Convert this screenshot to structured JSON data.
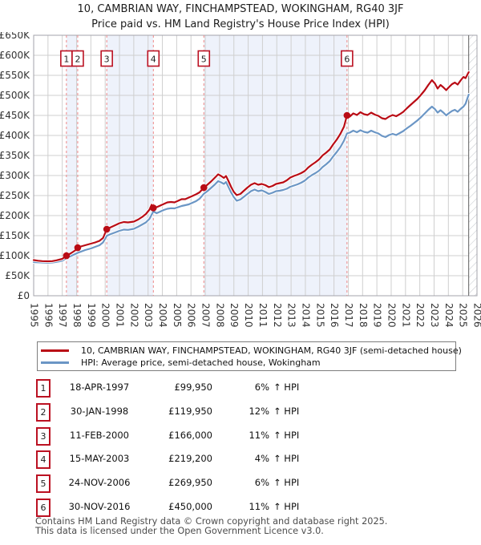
{
  "title": {
    "line1": "10, CAMBRIAN WAY, FINCHAMPSTEAD, WOKINGHAM, RG40 3JF",
    "line2": "Price paid vs. HM Land Registry's House Price Index (HPI)"
  },
  "legend": {
    "items": [
      {
        "label": "10, CAMBRIAN WAY, FINCHAMPSTEAD, WOKINGHAM, RG40 3JF (semi-detached house)",
        "color": "#b90c15"
      },
      {
        "label": "HPI: Average price, semi-detached house, Wokingham",
        "color": "#6b96c5"
      }
    ]
  },
  "table": {
    "hpi_suffix": "↑ HPI"
  },
  "footer": {
    "line1": "Contains HM Land Registry data © Crown copyright and database right 2025.",
    "line2": "This data is licensed under the Open Government Licence v3.0."
  },
  "chart_data": {
    "type": "line",
    "x_min": 1995,
    "x_max": 2026,
    "y_min": 0,
    "y_max": 650,
    "values_unit": "GBP thousands",
    "grid": true,
    "legend_position": "below",
    "y_tick_values": [
      0,
      50,
      100,
      150,
      200,
      250,
      300,
      350,
      400,
      450,
      500,
      550,
      600,
      650
    ],
    "y_tick_labels": [
      "£0",
      "£50K",
      "£100K",
      "£150K",
      "£200K",
      "£250K",
      "£300K",
      "£350K",
      "£400K",
      "£450K",
      "£500K",
      "£550K",
      "£600K",
      "£650K"
    ],
    "x_tick_labels": [
      "1995",
      "1996",
      "1997",
      "1998",
      "1999",
      "2000",
      "2001",
      "2002",
      "2003",
      "2004",
      "2005",
      "2006",
      "2007",
      "2008",
      "2009",
      "2010",
      "2011",
      "2012",
      "2013",
      "2014",
      "2015",
      "2016",
      "2017",
      "2018",
      "2019",
      "2020",
      "2021",
      "2022",
      "2023",
      "2024",
      "2025",
      "2026"
    ],
    "colors": {
      "price_line": "#b90c15",
      "hpi_line": "#6b96c5",
      "sale_dashed_line": "#ee8888",
      "ownership_band": "#eef2fb",
      "grid": "#cfcfcf",
      "frame": "#a3a3ab",
      "data_end_line": "#606060",
      "marker_box_border": "#bb1122"
    },
    "ownership_bands": [
      [
        1997.29,
        1998.08
      ],
      [
        2000.11,
        2003.37
      ],
      [
        2006.9,
        2016.91
      ]
    ],
    "data_end": 2025.42,
    "sales": [
      {
        "n": 1,
        "date": "18-APR-1997",
        "year": 1997.29,
        "price": 99950,
        "price_label": "£99,950",
        "vs_hpi": "6%"
      },
      {
        "n": 2,
        "date": "30-JAN-1998",
        "year": 1998.08,
        "price": 119950,
        "price_label": "£119,950",
        "vs_hpi": "12%"
      },
      {
        "n": 3,
        "date": "11-FEB-2000",
        "year": 2000.11,
        "price": 166000,
        "price_label": "£166,000",
        "vs_hpi": "11%"
      },
      {
        "n": 4,
        "date": "15-MAY-2003",
        "year": 2003.37,
        "price": 219200,
        "price_label": "£219,200",
        "vs_hpi": "4%"
      },
      {
        "n": 5,
        "date": "24-NOV-2006",
        "year": 2006.9,
        "price": 269950,
        "price_label": "£269,950",
        "vs_hpi": "6%"
      },
      {
        "n": 6,
        "date": "30-NOV-2016",
        "year": 2016.91,
        "price": 450000,
        "price_label": "£450,000",
        "vs_hpi": "11%"
      }
    ],
    "series": [
      {
        "name": "10, CAMBRIAN WAY, FINCHAMPSTEAD, WOKINGHAM, RG40 3JF (semi-detached house)",
        "color": "#b90c15",
        "points": [
          [
            1995.0,
            89
          ],
          [
            1995.3,
            87.5
          ],
          [
            1995.6,
            86.5
          ],
          [
            1996.0,
            86
          ],
          [
            1996.3,
            86.5
          ],
          [
            1996.6,
            88.5
          ],
          [
            1997.0,
            92
          ],
          [
            1997.29,
            100
          ],
          [
            1997.6,
            106
          ],
          [
            1997.9,
            113
          ],
          [
            1998.08,
            120
          ],
          [
            1998.3,
            123
          ],
          [
            1998.6,
            126
          ],
          [
            1999.0,
            130
          ],
          [
            1999.3,
            133
          ],
          [
            1999.6,
            137
          ],
          [
            1999.85,
            144
          ],
          [
            2000.11,
            166
          ],
          [
            2000.4,
            171
          ],
          [
            2000.7,
            176
          ],
          [
            2001.0,
            181
          ],
          [
            2001.3,
            184
          ],
          [
            2001.6,
            183
          ],
          [
            2002.0,
            185
          ],
          [
            2002.3,
            190
          ],
          [
            2002.6,
            197
          ],
          [
            2002.85,
            204
          ],
          [
            2003.1,
            215
          ],
          [
            2003.25,
            227
          ],
          [
            2003.37,
            219.2
          ],
          [
            2003.6,
            221
          ],
          [
            2003.85,
            225
          ],
          [
            2004.1,
            229
          ],
          [
            2004.35,
            233
          ],
          [
            2004.6,
            234
          ],
          [
            2004.85,
            233
          ],
          [
            2005.1,
            237
          ],
          [
            2005.35,
            241
          ],
          [
            2005.6,
            241
          ],
          [
            2005.85,
            245
          ],
          [
            2006.1,
            249
          ],
          [
            2006.35,
            253
          ],
          [
            2006.6,
            258
          ],
          [
            2006.9,
            270
          ],
          [
            2007.15,
            277
          ],
          [
            2007.4,
            285
          ],
          [
            2007.65,
            294
          ],
          [
            2007.9,
            303
          ],
          [
            2008.1,
            299
          ],
          [
            2008.3,
            294
          ],
          [
            2008.45,
            299
          ],
          [
            2008.6,
            288
          ],
          [
            2008.8,
            272
          ],
          [
            2009.0,
            259
          ],
          [
            2009.2,
            251
          ],
          [
            2009.45,
            254
          ],
          [
            2009.7,
            262
          ],
          [
            2009.95,
            270
          ],
          [
            2010.2,
            277
          ],
          [
            2010.45,
            281
          ],
          [
            2010.7,
            277
          ],
          [
            2010.95,
            279
          ],
          [
            2011.2,
            276
          ],
          [
            2011.45,
            271
          ],
          [
            2011.7,
            274
          ],
          [
            2011.95,
            279
          ],
          [
            2012.2,
            281
          ],
          [
            2012.45,
            283
          ],
          [
            2012.7,
            288
          ],
          [
            2012.95,
            295
          ],
          [
            2013.2,
            299
          ],
          [
            2013.45,
            302
          ],
          [
            2013.7,
            306
          ],
          [
            2013.95,
            311
          ],
          [
            2014.2,
            320
          ],
          [
            2014.45,
            327
          ],
          [
            2014.7,
            333
          ],
          [
            2014.95,
            340
          ],
          [
            2015.2,
            350
          ],
          [
            2015.45,
            357
          ],
          [
            2015.7,
            365
          ],
          [
            2015.95,
            378
          ],
          [
            2016.2,
            390
          ],
          [
            2016.45,
            404
          ],
          [
            2016.7,
            422
          ],
          [
            2016.91,
            450
          ],
          [
            2017.1,
            447
          ],
          [
            2017.35,
            455
          ],
          [
            2017.6,
            451
          ],
          [
            2017.85,
            458
          ],
          [
            2018.1,
            453
          ],
          [
            2018.35,
            451
          ],
          [
            2018.6,
            457
          ],
          [
            2018.85,
            452
          ],
          [
            2019.1,
            449
          ],
          [
            2019.35,
            443
          ],
          [
            2019.6,
            441
          ],
          [
            2019.85,
            447
          ],
          [
            2020.1,
            451
          ],
          [
            2020.35,
            448
          ],
          [
            2020.6,
            453
          ],
          [
            2020.85,
            459
          ],
          [
            2021.1,
            468
          ],
          [
            2021.35,
            476
          ],
          [
            2021.6,
            484
          ],
          [
            2021.85,
            492
          ],
          [
            2022.1,
            502
          ],
          [
            2022.35,
            513
          ],
          [
            2022.6,
            526
          ],
          [
            2022.85,
            538
          ],
          [
            2023.05,
            530
          ],
          [
            2023.25,
            517
          ],
          [
            2023.45,
            526
          ],
          [
            2023.65,
            520
          ],
          [
            2023.85,
            513
          ],
          [
            2024.05,
            521
          ],
          [
            2024.25,
            528
          ],
          [
            2024.45,
            532
          ],
          [
            2024.65,
            527
          ],
          [
            2024.85,
            537
          ],
          [
            2025.05,
            546
          ],
          [
            2025.2,
            543
          ],
          [
            2025.42,
            558
          ]
        ]
      },
      {
        "name": "HPI: Average price, semi-detached house, Wokingham",
        "color": "#6b96c5",
        "points": [
          [
            1995.0,
            84
          ],
          [
            1995.3,
            83.5
          ],
          [
            1995.6,
            83
          ],
          [
            1996.0,
            82.5
          ],
          [
            1996.3,
            83
          ],
          [
            1996.6,
            84.5
          ],
          [
            1997.0,
            87.5
          ],
          [
            1997.29,
            94.5
          ],
          [
            1997.6,
            99
          ],
          [
            1997.9,
            104
          ],
          [
            1998.08,
            107
          ],
          [
            1998.3,
            110
          ],
          [
            1998.6,
            114
          ],
          [
            1999.0,
            118
          ],
          [
            1999.3,
            122
          ],
          [
            1999.6,
            126
          ],
          [
            1999.85,
            133
          ],
          [
            2000.11,
            149.5
          ],
          [
            2000.4,
            154
          ],
          [
            2000.7,
            158
          ],
          [
            2001.0,
            162
          ],
          [
            2001.3,
            165
          ],
          [
            2001.6,
            164.5
          ],
          [
            2002.0,
            167
          ],
          [
            2002.3,
            172
          ],
          [
            2002.6,
            178
          ],
          [
            2002.85,
            183
          ],
          [
            2003.1,
            192
          ],
          [
            2003.37,
            210.5
          ],
          [
            2003.6,
            206
          ],
          [
            2003.85,
            210
          ],
          [
            2004.1,
            214
          ],
          [
            2004.35,
            217
          ],
          [
            2004.6,
            218.5
          ],
          [
            2004.85,
            218
          ],
          [
            2005.1,
            221
          ],
          [
            2005.35,
            224
          ],
          [
            2005.6,
            226
          ],
          [
            2005.85,
            228
          ],
          [
            2006.1,
            232
          ],
          [
            2006.35,
            236
          ],
          [
            2006.6,
            242
          ],
          [
            2006.9,
            254.5
          ],
          [
            2007.15,
            261
          ],
          [
            2007.4,
            269
          ],
          [
            2007.65,
            277
          ],
          [
            2007.9,
            286
          ],
          [
            2008.1,
            283
          ],
          [
            2008.3,
            279
          ],
          [
            2008.45,
            284
          ],
          [
            2008.6,
            273
          ],
          [
            2008.8,
            258
          ],
          [
            2009.0,
            246
          ],
          [
            2009.2,
            237
          ],
          [
            2009.45,
            240
          ],
          [
            2009.7,
            247
          ],
          [
            2009.95,
            254
          ],
          [
            2010.2,
            261
          ],
          [
            2010.45,
            265
          ],
          [
            2010.7,
            261
          ],
          [
            2010.95,
            263
          ],
          [
            2011.2,
            259
          ],
          [
            2011.45,
            254
          ],
          [
            2011.7,
            257
          ],
          [
            2011.95,
            261
          ],
          [
            2012.2,
            262
          ],
          [
            2012.45,
            264
          ],
          [
            2012.7,
            267
          ],
          [
            2012.95,
            272
          ],
          [
            2013.2,
            275
          ],
          [
            2013.45,
            278
          ],
          [
            2013.7,
            282
          ],
          [
            2013.95,
            287
          ],
          [
            2014.2,
            295
          ],
          [
            2014.45,
            301
          ],
          [
            2014.7,
            306
          ],
          [
            2014.95,
            312
          ],
          [
            2015.2,
            321
          ],
          [
            2015.45,
            328
          ],
          [
            2015.7,
            336
          ],
          [
            2015.95,
            348
          ],
          [
            2016.2,
            359
          ],
          [
            2016.45,
            371
          ],
          [
            2016.7,
            387
          ],
          [
            2016.91,
            405
          ],
          [
            2017.1,
            407
          ],
          [
            2017.35,
            412
          ],
          [
            2017.6,
            408
          ],
          [
            2017.85,
            413
          ],
          [
            2018.1,
            409
          ],
          [
            2018.35,
            407
          ],
          [
            2018.6,
            412
          ],
          [
            2018.85,
            408
          ],
          [
            2019.1,
            405
          ],
          [
            2019.35,
            399
          ],
          [
            2019.6,
            396
          ],
          [
            2019.85,
            401
          ],
          [
            2020.1,
            404
          ],
          [
            2020.35,
            401
          ],
          [
            2020.6,
            406
          ],
          [
            2020.85,
            411
          ],
          [
            2021.1,
            418
          ],
          [
            2021.35,
            424
          ],
          [
            2021.6,
            431
          ],
          [
            2021.85,
            438
          ],
          [
            2022.1,
            446
          ],
          [
            2022.35,
            455
          ],
          [
            2022.6,
            464
          ],
          [
            2022.85,
            472
          ],
          [
            2023.05,
            466
          ],
          [
            2023.25,
            457
          ],
          [
            2023.45,
            463
          ],
          [
            2023.65,
            457
          ],
          [
            2023.85,
            450
          ],
          [
            2024.05,
            456
          ],
          [
            2024.25,
            461
          ],
          [
            2024.45,
            464
          ],
          [
            2024.65,
            459
          ],
          [
            2024.85,
            466
          ],
          [
            2025.05,
            472
          ],
          [
            2025.2,
            479
          ],
          [
            2025.42,
            502
          ]
        ]
      }
    ]
  }
}
